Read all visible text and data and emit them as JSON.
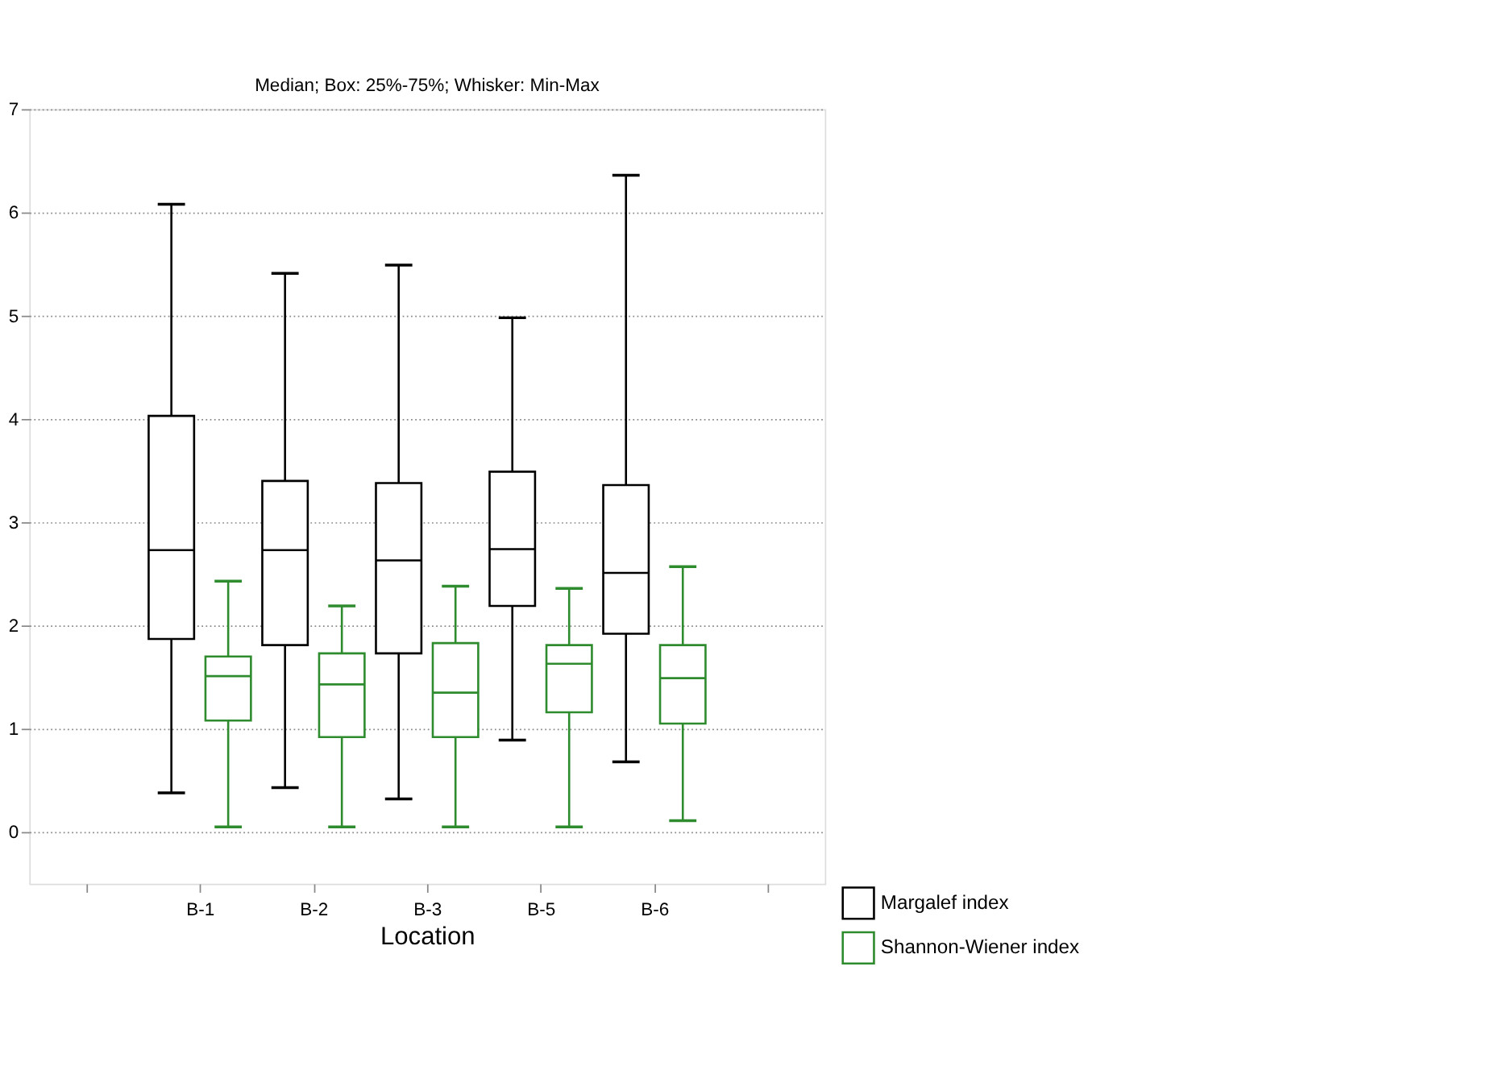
{
  "chart_data": {
    "type": "box",
    "title": "Median; Box: 25%-75%; Whisker: Min-Max",
    "xlabel": "Location",
    "categories": [
      "B-1",
      "B-2",
      "B-3",
      "B-5",
      "B-6"
    ],
    "series": [
      {
        "name": "Margalef index",
        "color": "#000000",
        "boxes": [
          {
            "low": 0.38,
            "q1": 1.87,
            "median": 2.73,
            "q3": 4.03,
            "high": 6.08
          },
          {
            "low": 0.43,
            "q1": 1.81,
            "median": 2.73,
            "q3": 3.4,
            "high": 5.41
          },
          {
            "low": 0.32,
            "q1": 1.73,
            "median": 2.63,
            "q3": 3.38,
            "high": 5.49
          },
          {
            "low": 0.89,
            "q1": 2.19,
            "median": 2.74,
            "q3": 3.49,
            "high": 4.98
          },
          {
            "low": 0.68,
            "q1": 1.92,
            "median": 2.51,
            "q3": 3.36,
            "high": 6.36
          }
        ]
      },
      {
        "name": "Shannon-Wiener index",
        "color": "#2e8b2e",
        "boxes": [
          {
            "low": 0.05,
            "q1": 1.08,
            "median": 1.51,
            "q3": 1.7,
            "high": 2.43
          },
          {
            "low": 0.05,
            "q1": 0.92,
            "median": 1.43,
            "q3": 1.73,
            "high": 2.19
          },
          {
            "low": 0.05,
            "q1": 0.92,
            "median": 1.35,
            "q3": 1.83,
            "high": 2.38
          },
          {
            "low": 0.05,
            "q1": 1.16,
            "median": 1.63,
            "q3": 1.81,
            "high": 2.36
          },
          {
            "low": 0.11,
            "q1": 1.05,
            "median": 1.49,
            "q3": 1.81,
            "high": 2.57
          }
        ]
      }
    ],
    "ylim": [
      -0.5,
      7
    ],
    "yticks": [
      0,
      1,
      2,
      3,
      4,
      5,
      6,
      7
    ],
    "grid": "y",
    "legend": "bottom right"
  }
}
